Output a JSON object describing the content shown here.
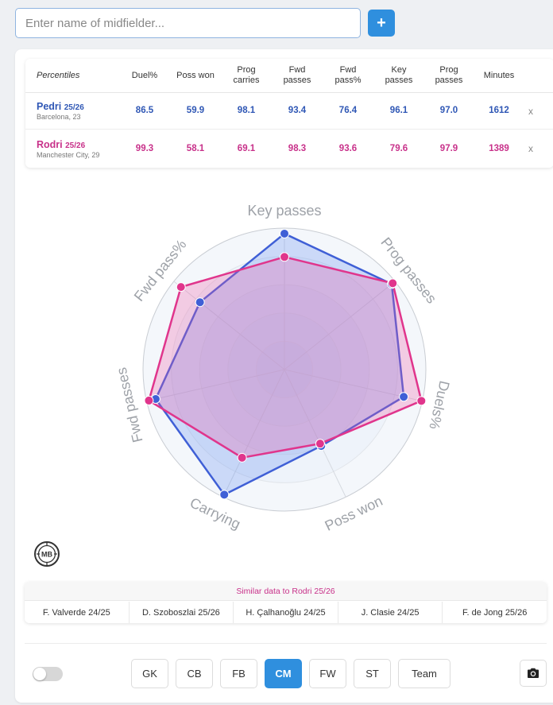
{
  "search": {
    "placeholder": "Enter name of midfielder...",
    "value": ""
  },
  "add_button": {
    "label": "+"
  },
  "table": {
    "columns": [
      "Percentiles",
      "Duel%",
      "Poss won",
      "Prog carries",
      "Fwd passes",
      "Fwd pass%",
      "Key passes",
      "Prog passes",
      "Minutes"
    ],
    "rows": [
      {
        "name": "Pedri",
        "season": "25/26",
        "team": "Barcelona, 23",
        "values": [
          "86.5",
          "59.9",
          "98.1",
          "93.4",
          "76.4",
          "96.1",
          "97.0",
          "1612"
        ],
        "remove": "x",
        "color": "#2f57b5"
      },
      {
        "name": "Rodri",
        "season": "25/26",
        "team": "Manchester City, 29",
        "values": [
          "99.3",
          "58.1",
          "69.1",
          "98.3",
          "93.6",
          "79.6",
          "97.9",
          "1389"
        ],
        "remove": "x",
        "color": "#c8318a"
      }
    ]
  },
  "radar": {
    "axes": [
      "Key passes",
      "Prog passes",
      "Duels%",
      "Poss won",
      "Carrying",
      "Fwd passes",
      "Fwd pass%"
    ],
    "max": 100,
    "series": [
      {
        "name": "Pedri 25/26",
        "color": "#3f5fd6",
        "fill": "rgba(96,140,240,0.28)",
        "values": [
          96.1,
          97.0,
          86.5,
          59.9,
          98.1,
          93.4,
          76.4
        ]
      },
      {
        "name": "Rodri 25/26",
        "color": "#e0358c",
        "fill": "rgba(236,90,165,0.28)",
        "values": [
          79.6,
          97.9,
          99.3,
          58.1,
          69.1,
          98.3,
          93.6
        ]
      }
    ]
  },
  "logo": {
    "text": "MB"
  },
  "similar": {
    "title": "Similar data to Rodri 25/26",
    "players": [
      "F. Valverde 24/25",
      "D. Szoboszlai 25/26",
      "H. Çalhanoğlu 24/25",
      "J. Clasie 24/25",
      "F. de Jong 25/26"
    ]
  },
  "positions": [
    {
      "label": "GK",
      "active": false
    },
    {
      "label": "CB",
      "active": false
    },
    {
      "label": "FB",
      "active": false
    },
    {
      "label": "CM",
      "active": true
    },
    {
      "label": "FW",
      "active": false
    },
    {
      "label": "ST",
      "active": false
    },
    {
      "label": "Team",
      "active": false
    }
  ],
  "toggle": {
    "on": false
  },
  "colors": {
    "accent": "#2f8fde",
    "player1": "#2f57b5",
    "player2": "#c8318a"
  },
  "icons": {
    "camera": "camera-icon",
    "logo": "mb-logo-icon"
  }
}
